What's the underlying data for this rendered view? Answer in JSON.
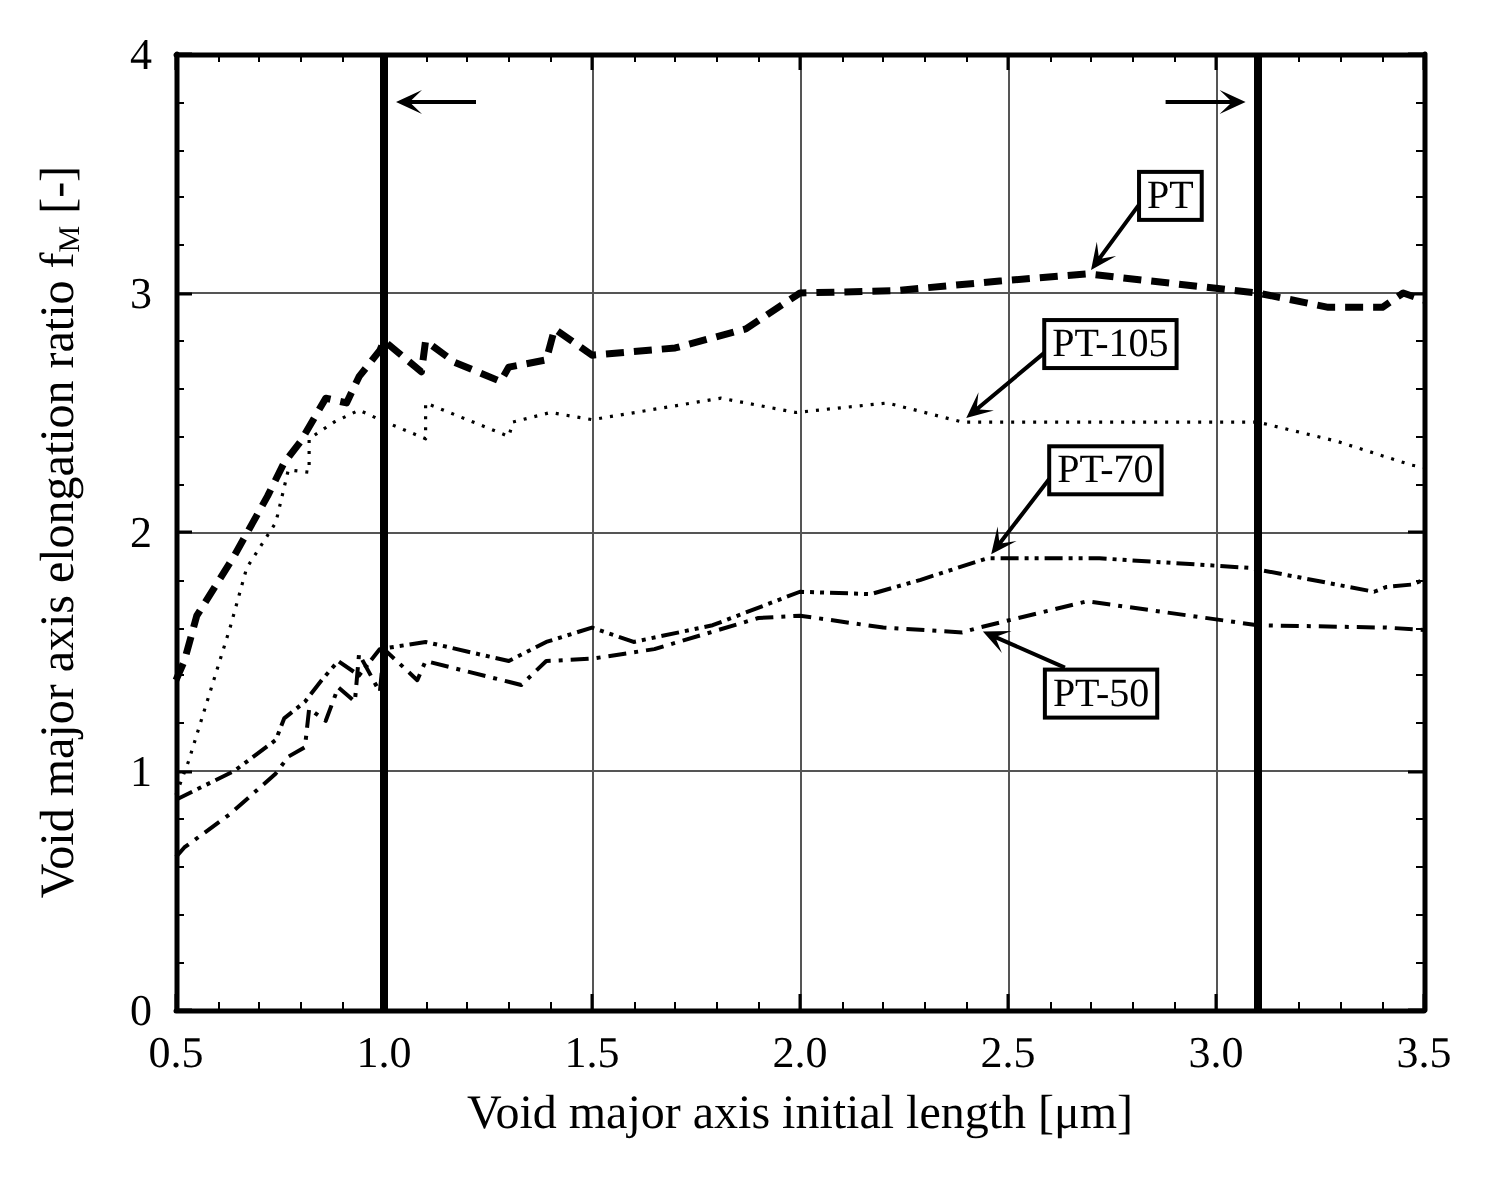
{
  "chart_data": {
    "type": "line",
    "xlabel": "Void major axis initial length [μm]",
    "ylabel": "Void major axis elongation ratio f$_{M}$ [-]",
    "xlim": [
      0.5,
      3.5
    ],
    "xticks": [
      0.5,
      {
        "value": 1,
        "label": "1.0"
      },
      1.5,
      {
        "value": 2,
        "label": "2.0"
      },
      2.5,
      {
        "value": 3,
        "label": "3.0"
      },
      3.5
    ],
    "ylim": [
      0,
      4
    ],
    "yticks": [
      0,
      1,
      2,
      3,
      4
    ],
    "grid": true,
    "marker": "none",
    "series": [
      {
        "name": "PT",
        "color": "#000000",
        "line_style": "dashed",
        "x": [
          0.5,
          0.52,
          0.55,
          0.64,
          0.72,
          0.76,
          0.8,
          0.86,
          0.91,
          0.94,
          0.99,
          1.0,
          1.09,
          1.1,
          1.17,
          1.28,
          1.3,
          1.39,
          1.41,
          1.5,
          1.7,
          1.87,
          2.0,
          2.23,
          2.48,
          2.69,
          3.1,
          3.27,
          3.4,
          3.45,
          3.5
        ],
        "values": [
          1.38,
          1.46,
          1.65,
          1.9,
          2.15,
          2.29,
          2.38,
          2.56,
          2.54,
          2.65,
          2.76,
          2.8,
          2.67,
          2.8,
          2.71,
          2.63,
          2.69,
          2.72,
          2.85,
          2.74,
          2.77,
          2.85,
          3.0,
          3.01,
          3.05,
          3.08,
          3.0,
          2.94,
          2.94,
          3.0,
          2.97
        ]
      },
      {
        "name": "PT-105",
        "color": "#000000",
        "line_style": "dotted",
        "x": [
          0.5,
          0.53,
          0.58,
          0.63,
          0.67,
          0.74,
          0.77,
          0.82,
          0.82,
          0.88,
          0.94,
          0.99,
          1.1,
          1.1,
          1.3,
          1.31,
          1.4,
          1.5,
          1.81,
          1.99,
          2.21,
          2.39,
          2.41,
          3.1,
          3.29,
          3.47,
          3.5
        ],
        "values": [
          0.9,
          1.04,
          1.32,
          1.6,
          1.85,
          2.04,
          2.26,
          2.25,
          2.39,
          2.46,
          2.51,
          2.47,
          2.39,
          2.54,
          2.4,
          2.46,
          2.5,
          2.47,
          2.56,
          2.5,
          2.54,
          2.46,
          2.46,
          2.46,
          2.38,
          2.28,
          2.27
        ]
      },
      {
        "name": "PT-70",
        "color": "#000000",
        "line_style": "dashdotdot",
        "x": [
          0.5,
          0.64,
          0.74,
          0.76,
          0.81,
          0.85,
          0.89,
          0.94,
          0.99,
          1.1,
          1.3,
          1.39,
          1.5,
          1.6,
          1.79,
          2.0,
          2.17,
          2.29,
          2.45,
          2.72,
          3.08,
          3.38,
          3.41,
          3.47,
          3.5
        ],
        "values": [
          0.88,
          1.0,
          1.13,
          1.22,
          1.29,
          1.38,
          1.46,
          1.4,
          1.51,
          1.54,
          1.46,
          1.54,
          1.6,
          1.54,
          1.61,
          1.75,
          1.74,
          1.8,
          1.89,
          1.89,
          1.85,
          1.75,
          1.77,
          1.78,
          1.8
        ]
      },
      {
        "name": "PT-50",
        "color": "#000000",
        "line_style": "dashdot",
        "x": [
          0.5,
          0.52,
          0.63,
          0.74,
          0.77,
          0.81,
          0.82,
          0.86,
          0.89,
          0.93,
          0.94,
          0.99,
          1.0,
          1.08,
          1.1,
          1.33,
          1.39,
          1.5,
          1.65,
          1.9,
          2.0,
          2.2,
          2.39,
          2.43,
          2.69,
          3.1,
          3.41,
          3.5
        ],
        "values": [
          0.64,
          0.68,
          0.82,
          0.99,
          1.06,
          1.1,
          1.26,
          1.21,
          1.35,
          1.29,
          1.49,
          1.33,
          1.51,
          1.38,
          1.46,
          1.36,
          1.46,
          1.47,
          1.51,
          1.64,
          1.65,
          1.6,
          1.58,
          1.6,
          1.71,
          1.61,
          1.6,
          1.59
        ]
      }
    ],
    "ref_lines": [
      {
        "axis": "x",
        "value": 1.0,
        "color": "#000000"
      },
      {
        "axis": "x",
        "value": 3.1,
        "color": "#000000"
      }
    ]
  }
}
